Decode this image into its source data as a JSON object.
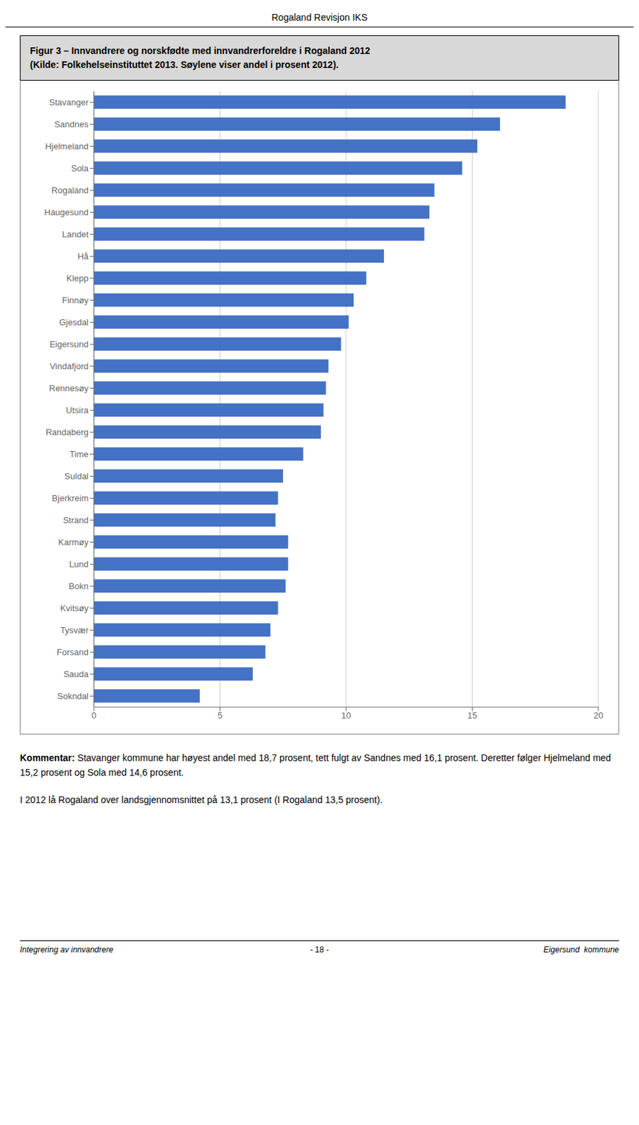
{
  "chart_data": {
    "type": "bar",
    "orientation": "horizontal",
    "title": "Figur 3 – Innvandrere og norskfødte med innvandrerforeldre i Rogaland 2012",
    "subtitle": "(Kilde: Folkehelseinstituttet 2013. Søylene viser andel i prosent 2012).",
    "categories": [
      "Stavanger",
      "Sandnes",
      "Hjelmeland",
      "Sola",
      "Rogaland",
      "Haugesund",
      "Landet",
      "Hå",
      "Klepp",
      "Finnøy",
      "Gjesdal",
      "Eigersund",
      "Vindafjord",
      "Rennesøy",
      "Utsira",
      "Randaberg",
      "Time",
      "Suldal",
      "Bjerkreim",
      "Strand",
      "Karmøy",
      "Lund",
      "Bokn",
      "Kvitsøy",
      "Tysvær",
      "Forsand",
      "Sauda",
      "Sokndal"
    ],
    "values": [
      18.7,
      16.1,
      15.2,
      14.6,
      13.5,
      13.3,
      13.1,
      11.5,
      10.8,
      10.3,
      10.1,
      9.8,
      9.3,
      9.2,
      9.1,
      9.0,
      8.3,
      7.5,
      7.3,
      7.2,
      7.7,
      7.7,
      7.6,
      7.3,
      7.0,
      6.8,
      6.3,
      4.2
    ],
    "color": "#4472C4",
    "xlim": [
      0,
      20
    ],
    "xticks": [
      0,
      5,
      10,
      15,
      20
    ],
    "grid": true,
    "annotations": [
      "Rogaland Revisjon IKS",
      "Kommentar:",
      " Stavanger kommune har høyest andel med 18,7 prosent, tett fulgt av Sandnes med 16,1 prosent. Deretter følger Hjelmeland med 15,2 prosent og Sola med 14,6 prosent.",
      "I 2012 lå Rogaland over landsgjennomsnittet på 13,1 prosent (I Rogaland 13,5 prosent).",
      "Integrering av innvandrere",
      "- 18 -",
      "Eigersund  kommune"
    ]
  }
}
